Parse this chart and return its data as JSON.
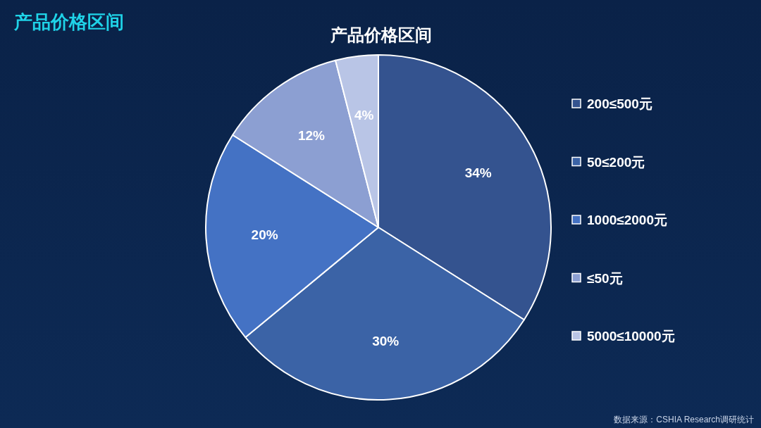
{
  "chart_data": {
    "type": "pie",
    "title": "产品价格区间",
    "subtitle": "产品价格区间",
    "categories": [
      "200≤500元",
      "50≤200元",
      "1000≤2000元",
      "≤50元",
      "5000≤10000元"
    ],
    "values": [
      34,
      30,
      20,
      12,
      4
    ],
    "value_labels": [
      "34%",
      "30%",
      "20%",
      "12%",
      "4%"
    ],
    "colors": [
      "#34538f",
      "#3b63a6",
      "#4472c4",
      "#8c9fd2",
      "#b9c5e6"
    ],
    "legend": "right",
    "annotations": [
      "数据来源：CSHIA Research调研统计"
    ]
  }
}
